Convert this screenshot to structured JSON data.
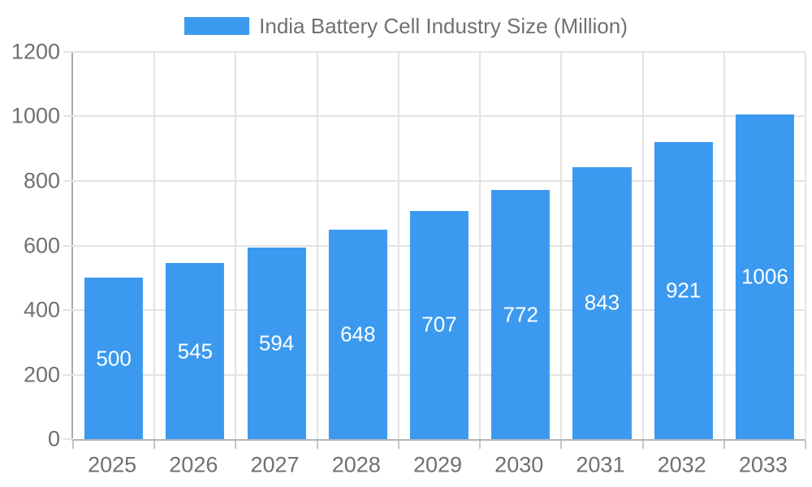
{
  "chart_data": {
    "type": "bar",
    "title": "India Battery Cell Industry Size (Million)",
    "categories": [
      "2025",
      "2026",
      "2027",
      "2028",
      "2029",
      "2030",
      "2031",
      "2032",
      "2033"
    ],
    "values": [
      500,
      545,
      594,
      648,
      707,
      772,
      843,
      921,
      1006
    ],
    "xlabel": "",
    "ylabel": "",
    "ylim": [
      0,
      1200
    ],
    "y_ticks": [
      0,
      200,
      400,
      600,
      800,
      1000,
      1200
    ],
    "grid": true,
    "value_labels_inside_bars": true,
    "legend_position": "top-center",
    "colors": {
      "bar": "#3B9AEF",
      "value_label": "#FFFFFF",
      "axis_text": "#707070",
      "grid_line": "#E3E3E3",
      "axis_line": "#A9A9A9",
      "baseline": "#B5B5B5",
      "tick": "#C6C6C6",
      "background": "#FFFFFF"
    }
  }
}
